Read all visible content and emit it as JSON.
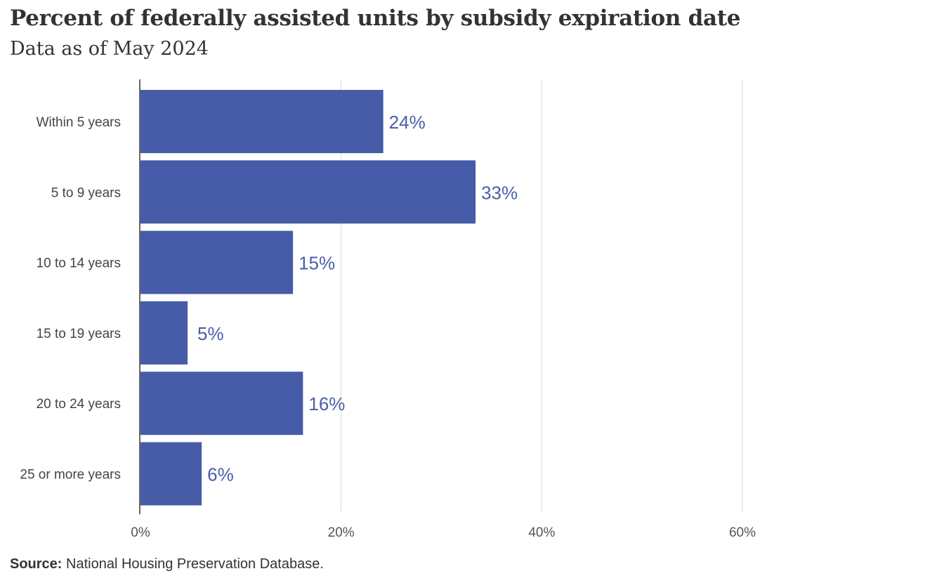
{
  "chart_data": {
    "type": "bar",
    "orientation": "horizontal",
    "title": "Percent of federally assisted units by subsidy expiration date",
    "subtitle": "Data as of May 2024",
    "categories": [
      "Within 5 years",
      "5 to 9 years",
      "10 to 14 years",
      "15 to 19 years",
      "20 to 24 years",
      "25 or more years"
    ],
    "values": [
      24.2,
      33.4,
      15.2,
      4.7,
      16.2,
      6.1
    ],
    "value_labels": [
      "24%",
      "33%",
      "15%",
      "5%",
      "16%",
      "6%"
    ],
    "xlim": [
      0,
      60
    ],
    "x_ticks": [
      0,
      20,
      40,
      60
    ],
    "x_tick_labels": [
      "0%",
      "20%",
      "40%",
      "60%"
    ],
    "grid": true,
    "legend": "none",
    "bar_color": "#465ca8",
    "label_color": "#4c5ea8"
  },
  "source": {
    "prefix": "Source:",
    "text": " National Housing Preservation Database."
  }
}
